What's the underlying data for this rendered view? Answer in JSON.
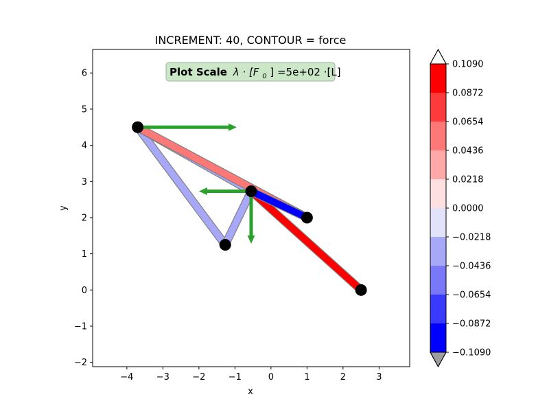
{
  "chart_data": {
    "type": "truss-plot",
    "title": "INCREMENT: 40, CONTOUR = force",
    "xlabel": "x",
    "ylabel": "y",
    "xlim": [
      -4.95,
      3.85
    ],
    "ylim": [
      -2.12,
      6.65
    ],
    "xticks": [
      -4,
      -3,
      -2,
      -1,
      0,
      1,
      2,
      3
    ],
    "yticks": [
      -2,
      -1,
      0,
      1,
      2,
      3,
      4,
      5,
      6
    ],
    "grid": false,
    "plot_scale": {
      "bold": "Plot Scale",
      "formula": "λ · [F",
      "sub": "0",
      "tail": "] =5e+02 ·[L]"
    },
    "nodes": [
      {
        "id": 1,
        "x": -3.7,
        "y": 4.5
      },
      {
        "id": 2,
        "x": -0.55,
        "y": 2.73
      },
      {
        "id": 3,
        "x": -1.27,
        "y": 1.25
      },
      {
        "id": 4,
        "x": 1.0,
        "y": 2.0
      },
      {
        "id": 5,
        "x": 2.5,
        "y": 0.0
      }
    ],
    "members": [
      {
        "from": 1,
        "to": 3,
        "force": -0.033
      },
      {
        "from": 3,
        "to": 2,
        "force": -0.033
      },
      {
        "from": 1,
        "to": 2,
        "force": -0.033
      },
      {
        "from": 1,
        "to": 4,
        "force": 0.06
      },
      {
        "from": 2,
        "to": 5,
        "force": 0.1
      },
      {
        "from": 2,
        "to": 4,
        "force": -0.1
      }
    ],
    "loads": [
      {
        "node": 1,
        "dx": 2.75,
        "dy": 0.0
      },
      {
        "node": 2,
        "dx": -1.45,
        "dy": 0.0
      },
      {
        "node": 2,
        "dx": 0.0,
        "dy": -1.45
      }
    ],
    "colorbar": {
      "min": -0.109,
      "max": 0.109,
      "levels": 10,
      "tick_labels": [
        "0.1090",
        "0.0872",
        "0.0654",
        "0.0436",
        "0.0218",
        "0.0000",
        "−0.0218",
        "−0.0436",
        "−0.0654",
        "−0.0872",
        "−0.1090"
      ],
      "band_colors_top_to_bottom": [
        "#ff0000",
        "#ff3a3a",
        "#ff7878",
        "#ffa8a8",
        "#ffe0e0",
        "#e2e2fa",
        "#a8a8f8",
        "#7878f8",
        "#3a3aff",
        "#0000ff"
      ],
      "extend_max_color": "#ffffff",
      "extend_min_color": "#9e9e9e"
    },
    "load_arrow_color": "#2ca02c",
    "node_color": "#000000"
  }
}
